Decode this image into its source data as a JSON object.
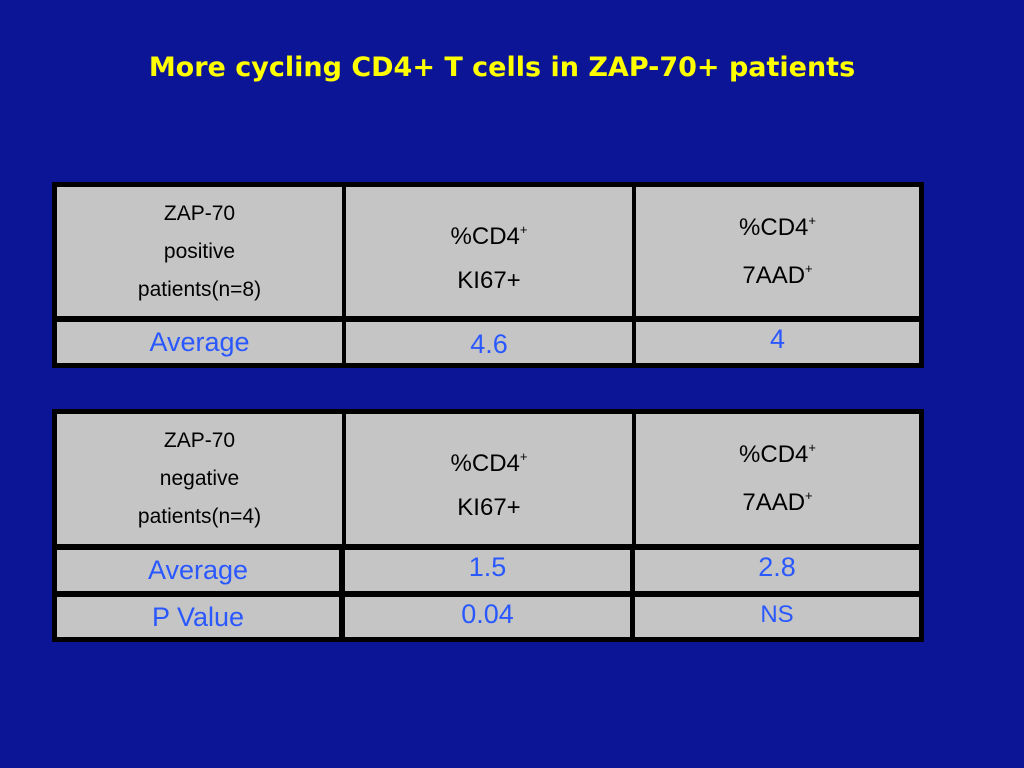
{
  "slide": {
    "title": "More cycling CD4+ T cells in ZAP-70+ patients"
  },
  "table_positive": {
    "header": {
      "group_line1": "ZAP-70",
      "group_line2": "positive",
      "group_line3": "patients(n=8)",
      "col2_line1": "%CD4",
      "col2_sup": "+",
      "col2_line2": "KI67+",
      "col3_line1": "%CD4",
      "col3_sup1": "+",
      "col3_line2": "7AAD",
      "col3_sup2": "+"
    },
    "rows": [
      {
        "label": "Average",
        "ki67": "4.6",
        "aad": "4"
      }
    ]
  },
  "table_negative": {
    "header": {
      "group_line1": "ZAP-70",
      "group_line2": "negative",
      "group_line3": "patients(n=4)",
      "col2_line1": "%CD4",
      "col2_sup": "+",
      "col2_line2": "KI67+",
      "col3_line1": "%CD4",
      "col3_sup1": "+",
      "col3_line2": "7AAD",
      "col3_sup2": "+"
    },
    "rows": [
      {
        "label": "Average",
        "ki67": "1.5",
        "aad": "2.8"
      },
      {
        "label": "P Value",
        "ki67": "0.04",
        "aad": "NS"
      }
    ]
  },
  "colors": {
    "background": "#0b1596",
    "title": "#ffff00",
    "cell_fill": "#c5c5c5",
    "value_text": "#2a58ff"
  }
}
